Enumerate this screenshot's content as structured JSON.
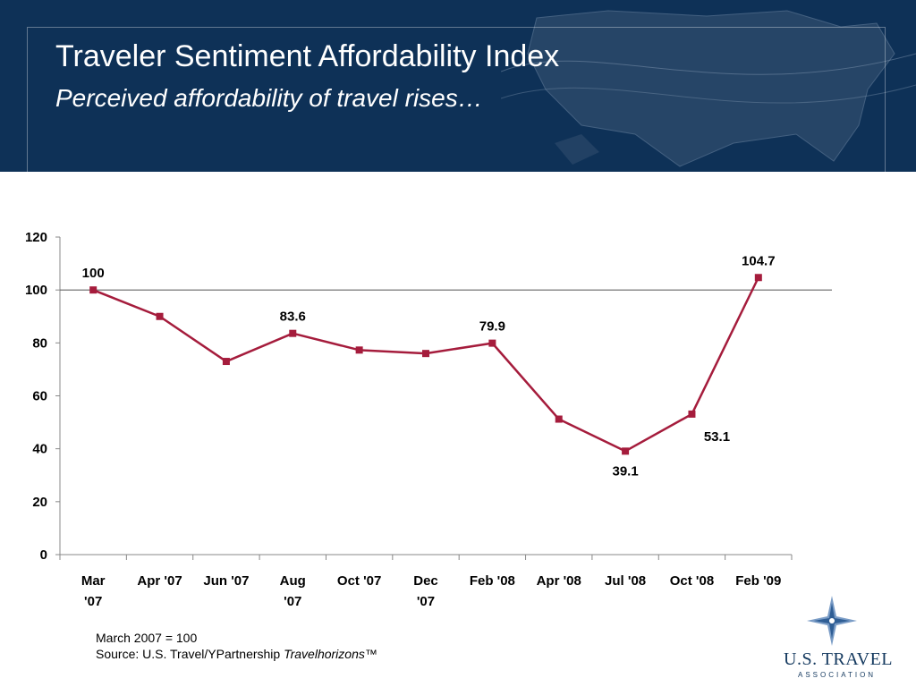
{
  "header": {
    "title": "Traveler Sentiment Affordability Index",
    "subtitle": "Perceived affordability of travel rises…"
  },
  "chart_data": {
    "type": "line",
    "categories": [
      [
        "Mar",
        "'07"
      ],
      [
        "Apr '07"
      ],
      [
        "Jun '07"
      ],
      [
        "Aug",
        "'07"
      ],
      [
        "Oct '07"
      ],
      [
        "Dec",
        "'07"
      ],
      [
        "Feb '08"
      ],
      [
        "Apr '08"
      ],
      [
        "Jul '08"
      ],
      [
        "Oct '08"
      ],
      [
        "Feb '09"
      ]
    ],
    "values": [
      100,
      90,
      73,
      83.6,
      77.3,
      76,
      79.9,
      51.2,
      39.1,
      53.1,
      104.7
    ],
    "data_labels": [
      {
        "index": 0,
        "text": "100",
        "pos": "above"
      },
      {
        "index": 3,
        "text": "83.6",
        "pos": "above"
      },
      {
        "index": 6,
        "text": "79.9",
        "pos": "above"
      },
      {
        "index": 8,
        "text": "39.1",
        "pos": "below"
      },
      {
        "index": 9,
        "text": "53.1",
        "pos": "below-right"
      },
      {
        "index": 10,
        "text": "104.7",
        "pos": "above"
      }
    ],
    "yticks": [
      0,
      20,
      40,
      60,
      80,
      100,
      120
    ],
    "ylim": [
      0,
      120
    ],
    "reference_line": 100,
    "grid": false,
    "line_color": "#a51c3c",
    "xlabel": "",
    "ylabel": ""
  },
  "notes": {
    "base": "March 2007 = 100",
    "source_prefix": "Source:  U.S. Travel/YPartnership ",
    "source_title": "Travelhorizons™"
  },
  "logo": {
    "name": "U.S. TRAVEL",
    "association": "ASSOCIATION"
  },
  "colors": {
    "header_bg": "#0e3157",
    "line": "#a51c3c",
    "logo_text": "#14395f"
  }
}
